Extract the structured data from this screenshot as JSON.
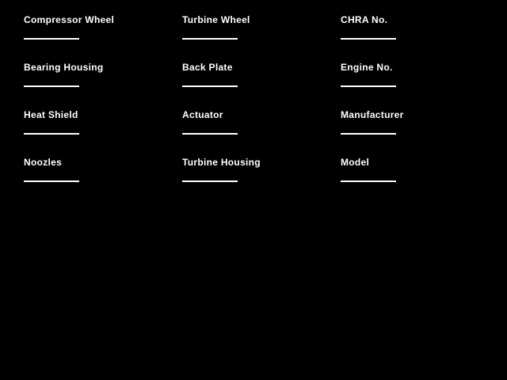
{
  "canvas": {
    "background_color": "#000000",
    "text_color": "#ffffff"
  },
  "form": {
    "columns": [
      {
        "fields": [
          {
            "label": "Compressor Wheel",
            "value": ""
          },
          {
            "label": "Bearing Housing",
            "value": ""
          },
          {
            "label": "Heat Shield",
            "value": ""
          },
          {
            "label": "Noozles",
            "value": ""
          }
        ]
      },
      {
        "fields": [
          {
            "label": "Turbine Wheel",
            "value": ""
          },
          {
            "label": "Back Plate",
            "value": ""
          },
          {
            "label": "Actuator",
            "value": ""
          },
          {
            "label": "Turbine Housing",
            "value": ""
          }
        ]
      },
      {
        "fields": [
          {
            "label": "CHRA No.",
            "value": ""
          },
          {
            "label": "Engine No.",
            "value": ""
          },
          {
            "label": "Manufacturer",
            "value": ""
          },
          {
            "label": "Model",
            "value": ""
          }
        ]
      }
    ]
  }
}
